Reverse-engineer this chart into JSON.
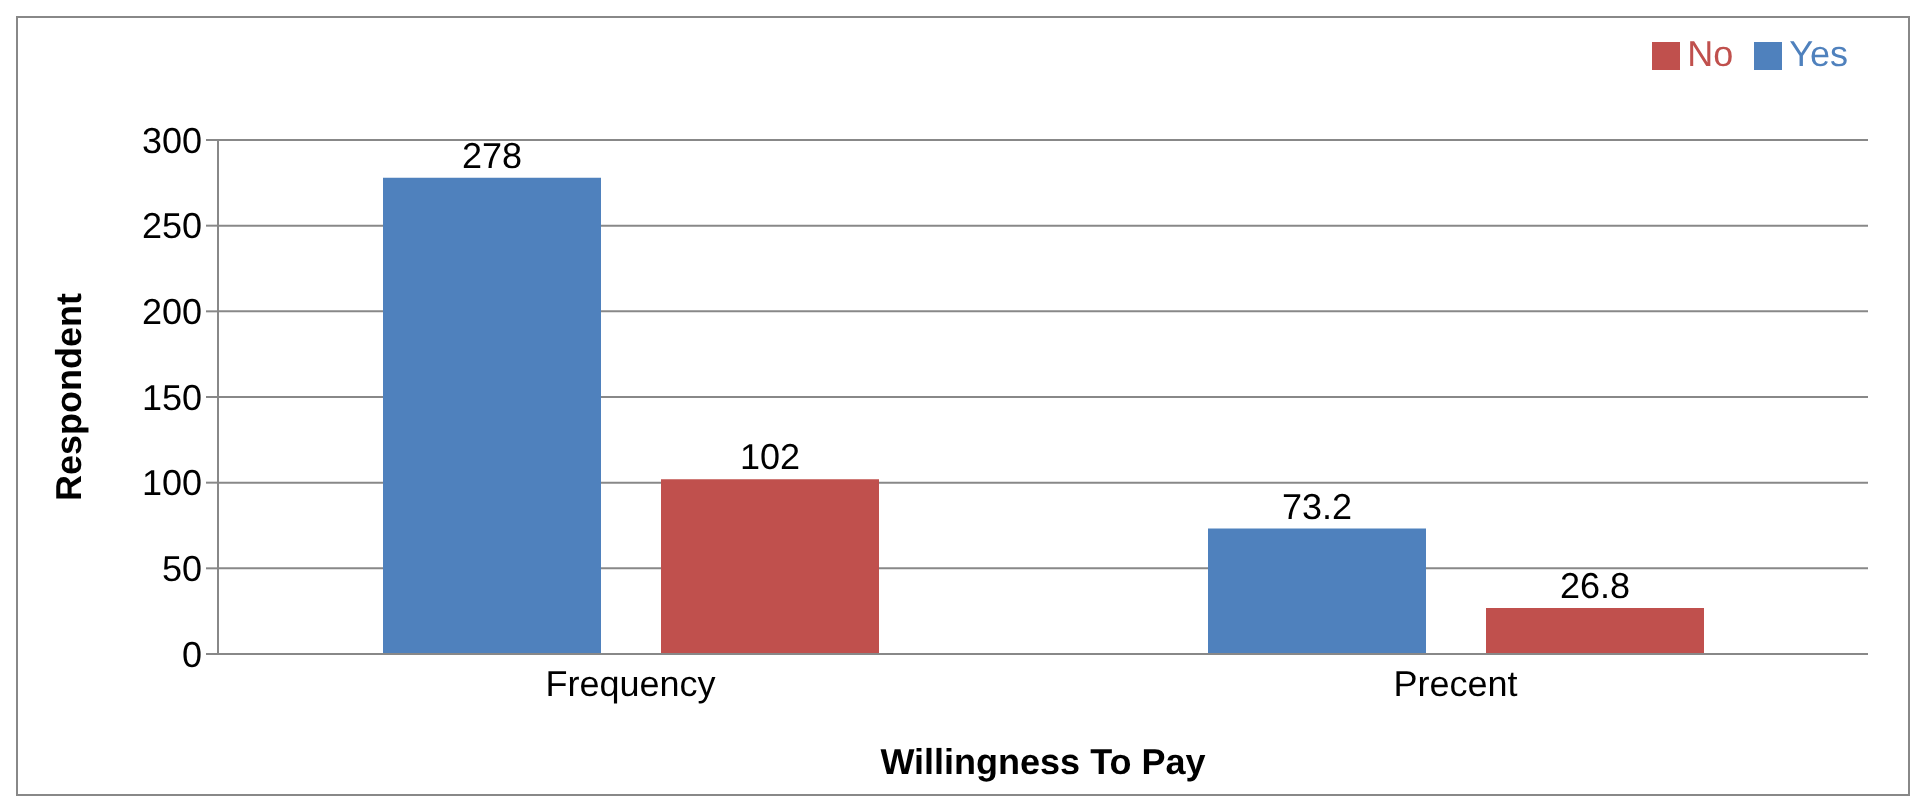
{
  "chart_data": {
    "type": "bar",
    "xlabel": "Willingness To Pay",
    "ylabel": "Respondent",
    "categories": [
      "Frequency",
      "Precent"
    ],
    "series": [
      {
        "name": "Yes",
        "color": "#4f81bd",
        "values": [
          278,
          73.2
        ]
      },
      {
        "name": "No",
        "color": "#c0504d",
        "values": [
          102,
          26.8
        ]
      }
    ],
    "ylim": [
      0,
      300
    ],
    "yticks": [
      0,
      50,
      100,
      150,
      200,
      250,
      300
    ],
    "grid": "y",
    "legend": "top right",
    "data_labels": true
  }
}
